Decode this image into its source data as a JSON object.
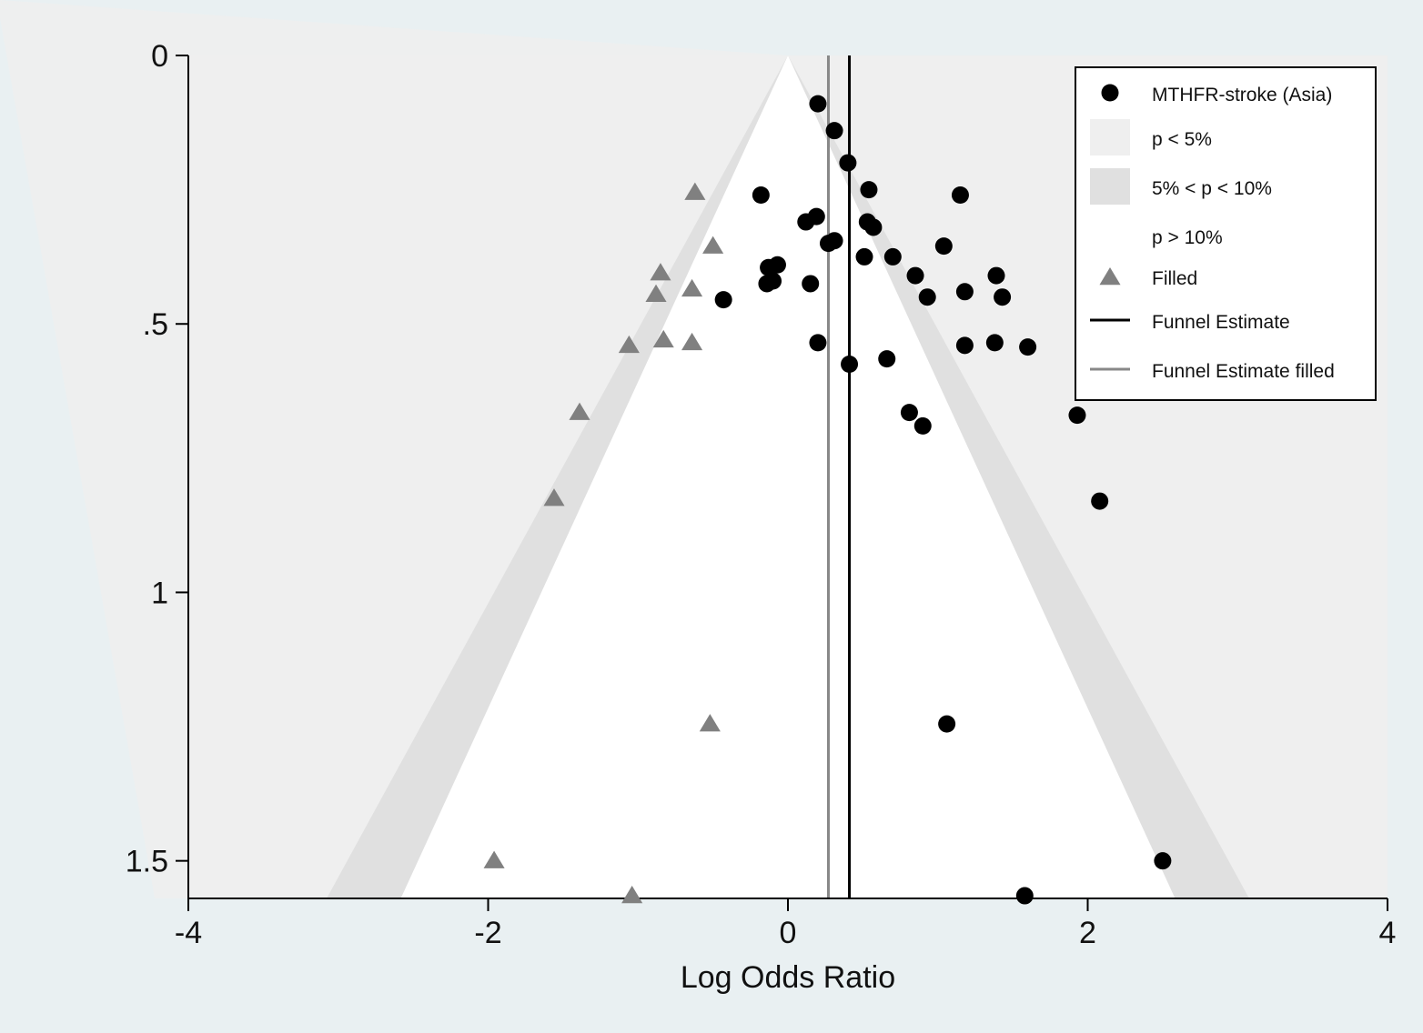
{
  "chart_data": {
    "type": "scatter",
    "title": "",
    "xlabel": "Log Odds Ratio",
    "ylabel": "",
    "xlim": [
      -4,
      4
    ],
    "ylim": [
      0,
      1.57
    ],
    "y_reversed": true,
    "x_ticks": [
      -4,
      -2,
      0,
      2,
      4
    ],
    "x_tick_labels": [
      "-4",
      "-2",
      "0",
      "2",
      "4"
    ],
    "y_ticks": [
      0,
      0.5,
      1,
      1.5
    ],
    "y_tick_labels": [
      "0",
      ".5",
      "1",
      "1.5"
    ],
    "grid": false,
    "legend_position": "top-right",
    "contours": {
      "z_05": 1.96,
      "z_10": 1.645,
      "center": 0
    },
    "legend": [
      {
        "key": "observed",
        "label": "MTHFR-stroke (Asia)",
        "symbol": "circle"
      },
      {
        "key": "p5",
        "label": "p < 5%",
        "symbol": "box",
        "color": "#efefef"
      },
      {
        "key": "p10",
        "label": "5% < p < 10%",
        "symbol": "box",
        "color": "#e0e0e0"
      },
      {
        "key": "pgt10",
        "label": "p > 10%",
        "symbol": "box",
        "color": "#ffffff"
      },
      {
        "key": "filled",
        "label": "Filled",
        "symbol": "triangle"
      },
      {
        "key": "est",
        "label": "Funnel Estimate",
        "symbol": "line",
        "color": "#000000"
      },
      {
        "key": "estfilled",
        "label": "Funnel Estimate filled",
        "symbol": "line",
        "color": "#888888"
      }
    ],
    "series": [
      {
        "name": "MTHFR-stroke (Asia)",
        "marker": "circle",
        "color": "#000000",
        "points": [
          [
            0.2,
            0.09
          ],
          [
            0.31,
            0.14
          ],
          [
            0.4,
            0.2
          ],
          [
            0.54,
            0.25
          ],
          [
            1.15,
            0.26
          ],
          [
            -0.18,
            0.26
          ],
          [
            0.19,
            0.3
          ],
          [
            0.12,
            0.31
          ],
          [
            0.53,
            0.31
          ],
          [
            0.57,
            0.32
          ],
          [
            0.31,
            0.345
          ],
          [
            0.27,
            0.35
          ],
          [
            1.04,
            0.355
          ],
          [
            0.51,
            0.375
          ],
          [
            0.7,
            0.375
          ],
          [
            -0.07,
            0.39
          ],
          [
            -0.13,
            0.395
          ],
          [
            0.85,
            0.41
          ],
          [
            1.39,
            0.41
          ],
          [
            -0.1,
            0.42
          ],
          [
            -0.14,
            0.425
          ],
          [
            0.15,
            0.425
          ],
          [
            1.18,
            0.44
          ],
          [
            0.93,
            0.45
          ],
          [
            1.43,
            0.45
          ],
          [
            -0.43,
            0.455
          ],
          [
            0.2,
            0.535
          ],
          [
            1.18,
            0.54
          ],
          [
            1.38,
            0.535
          ],
          [
            1.6,
            0.543
          ],
          [
            0.41,
            0.575
          ],
          [
            0.66,
            0.565
          ],
          [
            0.81,
            0.665
          ],
          [
            0.9,
            0.69
          ],
          [
            1.93,
            0.67
          ],
          [
            2.08,
            0.83
          ],
          [
            1.06,
            1.245
          ],
          [
            2.5,
            1.5
          ],
          [
            1.58,
            1.565
          ]
        ]
      },
      {
        "name": "Filled",
        "marker": "triangle",
        "color": "#808080",
        "points": [
          [
            -0.62,
            0.255
          ],
          [
            -0.5,
            0.355
          ],
          [
            -0.85,
            0.405
          ],
          [
            -0.88,
            0.445
          ],
          [
            -0.64,
            0.435
          ],
          [
            -0.83,
            0.53
          ],
          [
            -1.06,
            0.54
          ],
          [
            -0.64,
            0.535
          ],
          [
            -1.39,
            0.665
          ],
          [
            -1.56,
            0.825
          ],
          [
            -0.52,
            1.245
          ],
          [
            -1.96,
            1.5
          ],
          [
            -1.04,
            1.565
          ]
        ]
      }
    ],
    "funnel_estimate": 0.41,
    "funnel_estimate_filled": 0.27
  }
}
